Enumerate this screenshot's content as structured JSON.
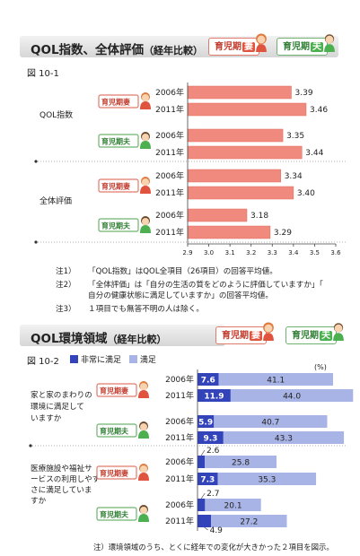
{
  "section1": {
    "title": "QOL指数、全体評価",
    "title_sub": "（経年比較）",
    "badge_wife": "育児期",
    "badge_wife_mark": "妻",
    "badge_husband": "育児期",
    "badge_husband_mark": "夫",
    "figure_label": "図 10-1",
    "notes": [
      {
        "num": "注1）",
        "text": "「QOL指数」はQOL全項目（26項目）の回答平均値。"
      },
      {
        "num": "注2）",
        "text": "「全体評価」は「自分の生活の質をどのように評価していますか」「自分の健康状態に満足していますか」の回答平均値。"
      },
      {
        "num": "注3）",
        "text": "１項目でも無答不明の人は除く。"
      }
    ]
  },
  "section2": {
    "title": "QOL環境領域",
    "title_sub": "（経年比較）",
    "badge_wife": "育児期",
    "badge_wife_mark": "妻",
    "badge_husband": "育児期",
    "badge_husband_mark": "夫",
    "figure_label": "図 10-2",
    "legend": [
      {
        "label": "非常に満足",
        "color": "#3344bb"
      },
      {
        "label": "満足",
        "color": "#a9b4e6"
      }
    ],
    "unit": "(%)",
    "footnote": "注）環境領域のうち、とくに経年での変化が大きかった２項目を図示。"
  },
  "chart_data": [
    {
      "type": "bar",
      "orientation": "horizontal",
      "xlim": [
        2.9,
        3.6
      ],
      "xticks": [
        "2.9",
        "3.0",
        "3.1",
        "3.2",
        "3.3",
        "3.4",
        "3.5",
        "3.6"
      ],
      "group_badges": {
        "wife": "育児期妻",
        "husband": "育児期夫"
      },
      "groups": [
        {
          "label": "QOL指数",
          "subgroups": [
            {
              "who": "wife",
              "rows": [
                {
                  "year": "2006年",
                  "value": 3.39
                },
                {
                  "year": "2011年",
                  "value": 3.46
                }
              ]
            },
            {
              "who": "husband",
              "rows": [
                {
                  "year": "2006年",
                  "value": 3.35
                },
                {
                  "year": "2011年",
                  "value": 3.44
                }
              ]
            }
          ]
        },
        {
          "label": "全体評価",
          "subgroups": [
            {
              "who": "wife",
              "rows": [
                {
                  "year": "2006年",
                  "value": 3.34
                },
                {
                  "year": "2011年",
                  "value": 3.4
                }
              ]
            },
            {
              "who": "husband",
              "rows": [
                {
                  "year": "2006年",
                  "value": 3.18
                },
                {
                  "year": "2011年",
                  "value": 3.29
                }
              ]
            }
          ]
        }
      ],
      "color": "#f08a7e"
    },
    {
      "type": "bar",
      "orientation": "horizontal",
      "stacked": true,
      "xlim": [
        0,
        100
      ],
      "series": [
        {
          "name": "非常に満足",
          "color": "#3344bb"
        },
        {
          "name": "満足",
          "color": "#a9b4e6"
        }
      ],
      "groups": [
        {
          "label": "家と家のまわりの環境に満足していますか",
          "label_lines": [
            "家と家のまわりの",
            "環境に満足して",
            "いますか"
          ],
          "subgroups": [
            {
              "who": "wife",
              "rows": [
                {
                  "year": "2006年",
                  "values": [
                    7.6,
                    41.1
                  ]
                },
                {
                  "year": "2011年",
                  "values": [
                    11.9,
                    44.0
                  ]
                }
              ]
            },
            {
              "who": "husband",
              "rows": [
                {
                  "year": "2006年",
                  "values": [
                    5.9,
                    40.7
                  ]
                },
                {
                  "year": "2011年",
                  "values": [
                    9.3,
                    43.3
                  ]
                }
              ]
            }
          ]
        },
        {
          "label": "医療施設や福祉サービスの利用しやすさに満足していますか",
          "label_lines": [
            "医療施設や福祉サ",
            "ービスの利用しやす",
            "さに満足していま",
            "すか"
          ],
          "subgroups": [
            {
              "who": "wife",
              "rows": [
                {
                  "year": "2006年",
                  "values": [
                    2.6,
                    25.8
                  ]
                },
                {
                  "year": "2011年",
                  "values": [
                    7.3,
                    35.3
                  ]
                }
              ]
            },
            {
              "who": "husband",
              "rows": [
                {
                  "year": "2006年",
                  "values": [
                    2.7,
                    20.1
                  ]
                },
                {
                  "year": "2011年",
                  "values": [
                    4.9,
                    27.2
                  ]
                }
              ]
            }
          ]
        }
      ]
    }
  ]
}
